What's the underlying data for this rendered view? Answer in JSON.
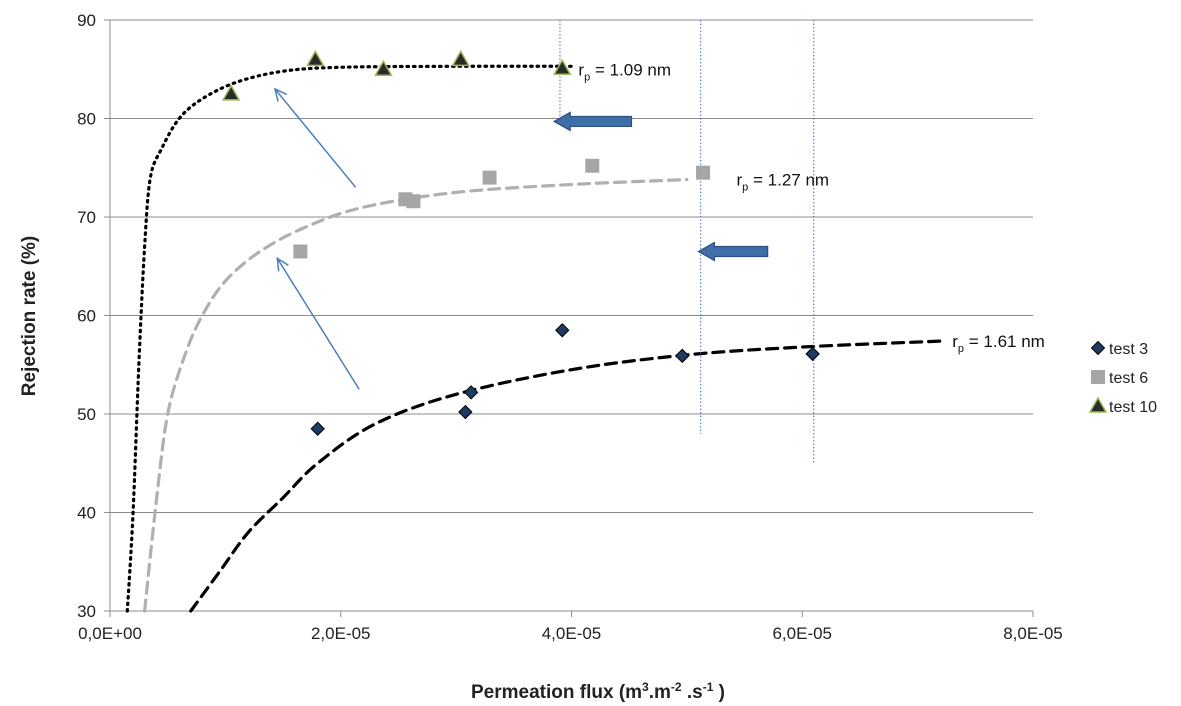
{
  "chart_data": {
    "type": "scatter",
    "title": "",
    "xlabel": {
      "base": "Permeation flux (m",
      "sup1": "3",
      "mid1": ".m",
      "sup2": "-2",
      "mid2": " .s",
      "sup3": "-1",
      "end": " )"
    },
    "ylabel": "Rejection rate (%)",
    "xlim": [
      0,
      8e-05
    ],
    "ylim": [
      30,
      90
    ],
    "x_ticks": [
      0,
      2e-05,
      4e-05,
      6e-05,
      8e-05
    ],
    "x_tick_labels": [
      "0,0E+00",
      "2,0E-05",
      "4,0E-05",
      "6,0E-05",
      "8,0E-05"
    ],
    "y_ticks": [
      30,
      40,
      50,
      60,
      70,
      80,
      90
    ],
    "y_tick_labels": [
      "30",
      "40",
      "50",
      "60",
      "70",
      "80",
      "90"
    ],
    "grid": "horizontal",
    "legend_position": "right",
    "series": [
      {
        "name": "test 3",
        "marker": "diamond",
        "color": "#1f3a63",
        "points": [
          [
            1.8e-05,
            48.5
          ],
          [
            3.08e-05,
            50.2
          ],
          [
            3.13e-05,
            52.2
          ],
          [
            3.92e-05,
            58.5
          ],
          [
            4.96e-05,
            55.9
          ],
          [
            6.09e-05,
            56.1
          ]
        ]
      },
      {
        "name": "test 6",
        "marker": "square",
        "color": "#a6a6a6",
        "points": [
          [
            1.65e-05,
            66.5
          ],
          [
            2.56e-05,
            71.8
          ],
          [
            2.63e-05,
            71.6
          ],
          [
            3.29e-05,
            74.0
          ],
          [
            4.18e-05,
            75.2
          ],
          [
            5.14e-05,
            74.5
          ]
        ]
      },
      {
        "name": "test 10",
        "marker": "triangle",
        "color": "#2b2b2b",
        "points": [
          [
            1.05e-05,
            82.5
          ],
          [
            1.78e-05,
            86.0
          ],
          [
            2.37e-05,
            85.0
          ],
          [
            3.04e-05,
            86.0
          ],
          [
            3.92e-05,
            85.1
          ]
        ]
      }
    ],
    "fits": [
      {
        "label_prefix": "r",
        "label_sub": "p",
        "label_value": " =  1.09 nm",
        "color": "#000000",
        "style": "dotted",
        "points": [
          [
            1.5e-06,
            30
          ],
          [
            2e-06,
            40
          ],
          [
            2.5e-06,
            55
          ],
          [
            3e-06,
            67
          ],
          [
            3.5e-06,
            74
          ],
          [
            4.5e-06,
            77
          ],
          [
            6e-06,
            80
          ],
          [
            8e-06,
            82
          ],
          [
            1.1e-05,
            83.7
          ],
          [
            1.5e-05,
            84.8
          ],
          [
            2e-05,
            85.2
          ],
          [
            3e-05,
            85.3
          ],
          [
            4e-05,
            85.3
          ]
        ]
      },
      {
        "label_prefix": "r",
        "label_sub": "p",
        "label_value": " =  1.27 nm",
        "color": "#b0b0b0",
        "style": "dashed",
        "points": [
          [
            3e-06,
            30
          ],
          [
            4e-06,
            41
          ],
          [
            5e-06,
            50
          ],
          [
            6.5e-06,
            56
          ],
          [
            8e-06,
            60
          ],
          [
            1e-05,
            63.5
          ],
          [
            1.3e-05,
            66.5
          ],
          [
            1.7e-05,
            69
          ],
          [
            2.2e-05,
            71
          ],
          [
            3e-05,
            72.5
          ],
          [
            4e-05,
            73.3
          ],
          [
            5e-05,
            73.8
          ]
        ]
      },
      {
        "label_prefix": "r",
        "label_sub": "p",
        "label_value": " =  1.61 nm",
        "color": "#000000",
        "style": "dashed",
        "points": [
          [
            7e-06,
            30
          ],
          [
            9.5e-06,
            34
          ],
          [
            1.2e-05,
            38
          ],
          [
            1.5e-05,
            41.5
          ],
          [
            1.8e-05,
            45
          ],
          [
            2.3e-05,
            49
          ],
          [
            3e-05,
            52
          ],
          [
            4e-05,
            54.5
          ],
          [
            5e-05,
            56
          ],
          [
            6e-05,
            56.8
          ],
          [
            7.2e-05,
            57.4
          ]
        ]
      }
    ],
    "annotations": {
      "blue_arrows": [
        {
          "from": [
            2.13e-05,
            73.0
          ],
          "to": [
            1.43e-05,
            83.0
          ]
        },
        {
          "from": [
            2.16e-05,
            52.5
          ],
          "to": [
            1.45e-05,
            65.8
          ]
        }
      ],
      "block_arrows": [
        {
          "tip": [
            3.85e-05,
            79.7
          ],
          "tail": [
            4.52e-05,
            79.7
          ]
        },
        {
          "tip": [
            5.1e-05,
            66.5
          ],
          "tail": [
            5.7e-05,
            66.5
          ]
        }
      ],
      "dotted_verticals": [
        {
          "x": 3.9e-05,
          "y_from": 80.2,
          "y_to": 90
        },
        {
          "x": 5.12e-05,
          "y_from": 48.0,
          "y_to": 90
        },
        {
          "x": 6.1e-05,
          "y_from": 45.0,
          "y_to": 90
        }
      ]
    }
  }
}
